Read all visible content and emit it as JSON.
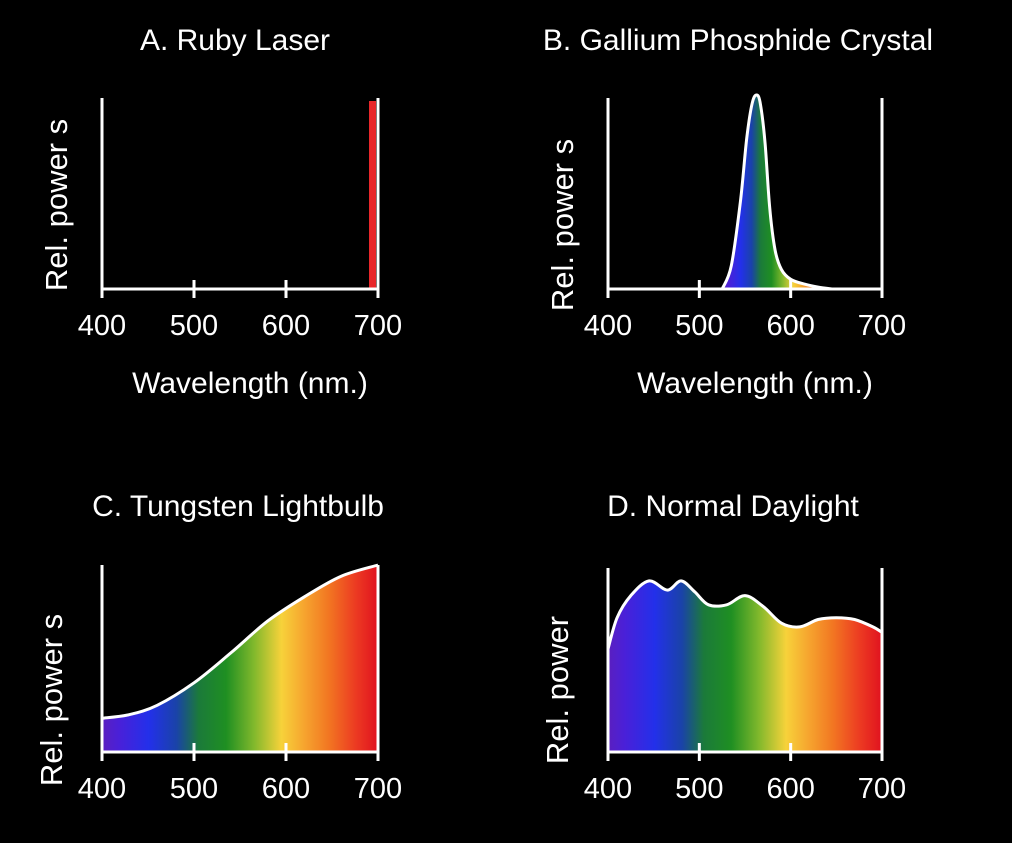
{
  "chart_data": [
    {
      "id": "A",
      "type": "line",
      "title": "A.  Ruby Laser",
      "xlabel": "Wavelength (nm.)",
      "ylabel": "Rel. power s",
      "xticks": [
        "400",
        "500",
        "600",
        "700"
      ],
      "xlim": [
        400,
        700
      ],
      "ylim": [
        0,
        1
      ],
      "line_color": "#e8272a",
      "series": [
        {
          "x": [
            694,
            694
          ],
          "y": [
            0,
            1.0
          ]
        }
      ]
    },
    {
      "id": "B",
      "type": "area",
      "title": "B. Gallium Phosphide Crystal",
      "xlabel": "Wavelength (nm.)",
      "ylabel": "Rel. power s",
      "xticks": [
        "400",
        "500",
        "600",
        "700"
      ],
      "xlim": [
        400,
        700
      ],
      "ylim": [
        0,
        1
      ],
      "fill": "spectrum",
      "series": [
        {
          "x": [
            525,
            535,
            545,
            552,
            558,
            563,
            567,
            572,
            577,
            583,
            590,
            600,
            615,
            630,
            645
          ],
          "y": [
            0,
            0.12,
            0.45,
            0.78,
            0.96,
            1.0,
            0.95,
            0.75,
            0.42,
            0.2,
            0.1,
            0.05,
            0.025,
            0.01,
            0
          ]
        }
      ]
    },
    {
      "id": "C",
      "type": "area",
      "title": "C.  Tungsten Lightbulb",
      "ylabel": "Rel. power s",
      "xticks": [
        "400",
        "500",
        "600",
        "700"
      ],
      "xlim": [
        400,
        700
      ],
      "ylim": [
        0,
        1
      ],
      "fill": "spectrum",
      "series": [
        {
          "x": [
            400,
            430,
            460,
            500,
            540,
            580,
            620,
            660,
            700
          ],
          "y": [
            0.18,
            0.2,
            0.25,
            0.37,
            0.53,
            0.7,
            0.83,
            0.94,
            1.0
          ]
        }
      ]
    },
    {
      "id": "D",
      "type": "area",
      "title": "D.  Normal Daylight",
      "ylabel": "Rel. power",
      "xticks": [
        "400",
        "500",
        "600",
        "700"
      ],
      "xlim": [
        400,
        700
      ],
      "ylim": [
        0,
        1
      ],
      "fill": "spectrum",
      "series": [
        {
          "x": [
            400,
            410,
            425,
            445,
            465,
            480,
            495,
            510,
            530,
            550,
            570,
            590,
            610,
            630,
            650,
            670,
            690,
            700
          ],
          "y": [
            0.56,
            0.73,
            0.85,
            0.93,
            0.88,
            0.93,
            0.87,
            0.8,
            0.8,
            0.85,
            0.79,
            0.7,
            0.68,
            0.72,
            0.73,
            0.72,
            0.68,
            0.65
          ]
        }
      ]
    }
  ]
}
